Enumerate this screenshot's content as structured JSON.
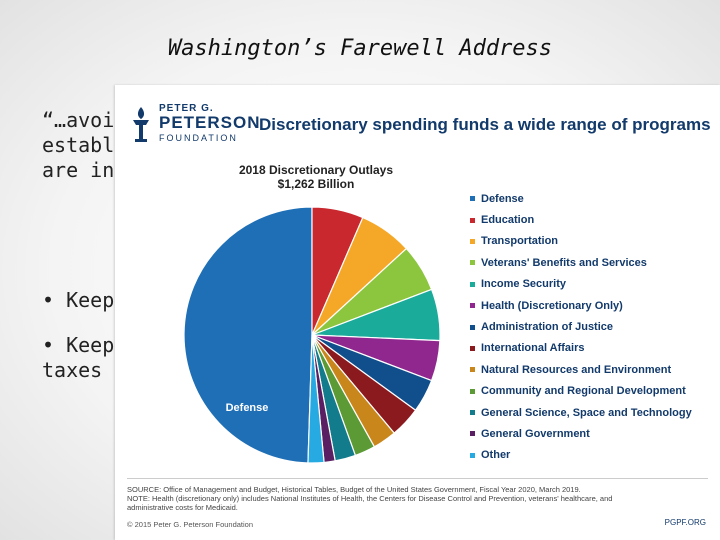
{
  "slide": {
    "title": "Washington’s Farewell Address",
    "quote_lines": [
      "“…avoid",
      "establ",
      "are inc"
    ],
    "bullets": [
      "• Keep",
      "• Keep"
    ],
    "bullet_extra": "taxes"
  },
  "logo": {
    "line1": "PETER G.",
    "line2": "PETERSON",
    "line3": "FOUNDATION",
    "color": "#123a6b"
  },
  "heading": "Discretionary spending funds a wide range of programs",
  "chart_data": {
    "type": "pie",
    "title_line1": "2018 Discretionary Outlays",
    "title_line2": "$1,262 Billion",
    "slice_label": "Defense",
    "series": [
      {
        "name": "Defense",
        "value": 49.5,
        "color": "#1f6fb6"
      },
      {
        "name": "Education",
        "value": 6.5,
        "color": "#c8282e"
      },
      {
        "name": "Transportation",
        "value": 6.7,
        "color": "#f5a828"
      },
      {
        "name": "Veterans' Benefits and Services",
        "value": 6.0,
        "color": "#8cc63e"
      },
      {
        "name": "Income Security",
        "value": 6.5,
        "color": "#1aab9b"
      },
      {
        "name": "Health (Discretionary Only)",
        "value": 5.1,
        "color": "#90278e"
      },
      {
        "name": "Administration of Justice",
        "value": 4.2,
        "color": "#114e8c"
      },
      {
        "name": "International Affairs",
        "value": 3.9,
        "color": "#8b1a1f"
      },
      {
        "name": "Natural Resources and Environment",
        "value": 3.0,
        "color": "#c9861b"
      },
      {
        "name": "Community and Regional Development",
        "value": 2.6,
        "color": "#5b9a35"
      },
      {
        "name": "General Science, Space and Technology",
        "value": 2.6,
        "color": "#137c8c"
      },
      {
        "name": "General Government",
        "value": 1.4,
        "color": "#5a1f63"
      },
      {
        "name": "Other",
        "value": 2.0,
        "color": "#27aae1"
      }
    ]
  },
  "source_lines": [
    "SOURCE: Office of Management and Budget, Historical Tables, Budget of the United States Government, Fiscal Year 2020, March 2019.",
    "NOTE: Health (discretionary only) includes National Institutes of Health, the Centers for Disease Control and Prevention, veterans' healthcare, and",
    "administrative costs for Medicaid."
  ],
  "footer_left": "© 2015 Peter G. Peterson Foundation",
  "footer_right": "PGPF.ORG"
}
